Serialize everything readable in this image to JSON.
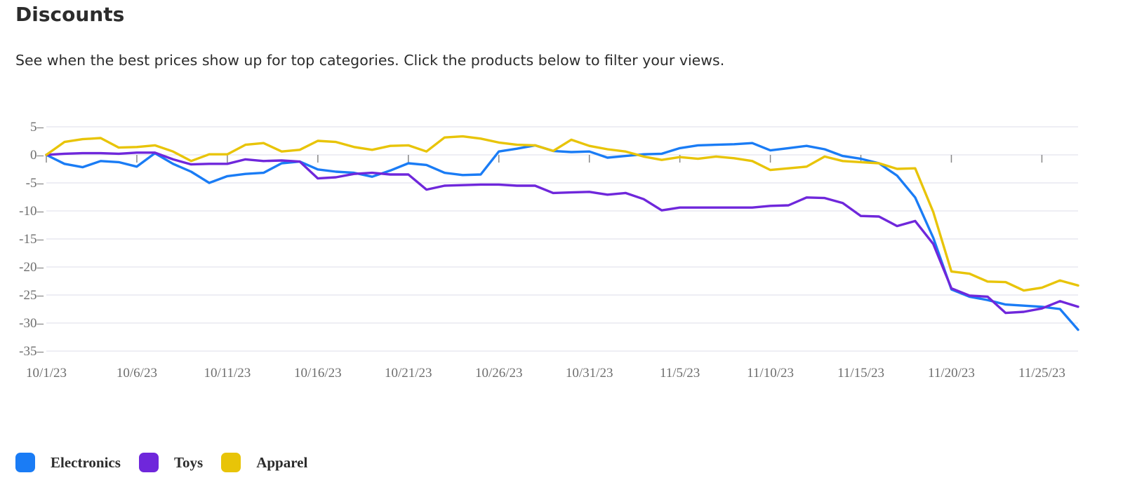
{
  "header": {
    "title": "Discounts",
    "subtitle": "See when the best prices show up for top categories. Click the products below to filter your views."
  },
  "chart_data": {
    "type": "line",
    "title": "",
    "xlabel": "",
    "ylabel": "",
    "ylim": [
      -35,
      5
    ],
    "yticks": [
      5,
      0,
      -5,
      -10,
      -15,
      -20,
      -25,
      -30,
      -35
    ],
    "grid": true,
    "legend_position": "bottom-left",
    "x": [
      "10/1/23",
      "10/2/23",
      "10/3/23",
      "10/4/23",
      "10/5/23",
      "10/6/23",
      "10/7/23",
      "10/8/23",
      "10/9/23",
      "10/10/23",
      "10/11/23",
      "10/12/23",
      "10/13/23",
      "10/14/23",
      "10/15/23",
      "10/16/23",
      "10/17/23",
      "10/18/23",
      "10/19/23",
      "10/20/23",
      "10/21/23",
      "10/22/23",
      "10/23/23",
      "10/24/23",
      "10/25/23",
      "10/26/23",
      "10/27/23",
      "10/28/23",
      "10/29/23",
      "10/30/23",
      "10/31/23",
      "11/1/23",
      "11/2/23",
      "11/3/23",
      "11/4/23",
      "11/5/23",
      "11/6/23",
      "11/7/23",
      "11/8/23",
      "11/9/23",
      "11/10/23",
      "11/11/23",
      "11/12/23",
      "11/13/23",
      "11/14/23",
      "11/15/23",
      "11/16/23",
      "11/17/23",
      "11/18/23",
      "11/19/23",
      "11/20/23",
      "11/21/23",
      "11/22/23",
      "11/23/23",
      "11/24/23",
      "11/25/23",
      "11/26/23",
      "11/27/23"
    ],
    "x_tick_labels": [
      "10/1/23",
      "10/6/23",
      "10/11/23",
      "10/16/23",
      "10/21/23",
      "10/26/23",
      "10/31/23",
      "11/5/23",
      "11/10/23",
      "11/15/23",
      "11/20/23",
      "11/25/23"
    ],
    "series": [
      {
        "name": "Electronics",
        "color": "#1a7cf5",
        "values": [
          0,
          -1.6,
          -2.2,
          -1.1,
          -1.3,
          -2.1,
          0.3,
          -1.6,
          -3.0,
          -5.0,
          -3.8,
          -3.4,
          -3.2,
          -1.5,
          -1.2,
          -2.6,
          -3.0,
          -3.2,
          -3.9,
          -2.8,
          -1.5,
          -1.8,
          -3.2,
          -3.6,
          -3.5,
          0.6,
          1.1,
          1.7,
          0.7,
          0.5,
          0.6,
          -0.5,
          -0.2,
          0.1,
          0.2,
          1.2,
          1.7,
          1.8,
          1.9,
          2.1,
          0.8,
          1.2,
          1.6,
          1.0,
          -0.2,
          -0.7,
          -1.5,
          -3.7,
          -7.6,
          -14.8,
          -24.0,
          -25.3,
          -25.9,
          -26.7,
          -26.9,
          -27.1,
          -27.5,
          -31.2
        ]
      },
      {
        "name": "Toys",
        "color": "#6f27db",
        "values": [
          0,
          0.2,
          0.3,
          0.3,
          0.2,
          0.4,
          0.4,
          -0.8,
          -1.7,
          -1.6,
          -1.6,
          -0.8,
          -1.1,
          -1.0,
          -1.2,
          -4.2,
          -4.0,
          -3.4,
          -3.2,
          -3.5,
          -3.5,
          -6.2,
          -5.5,
          -5.4,
          -5.3,
          -5.3,
          -5.5,
          -5.5,
          -6.8,
          -6.7,
          -6.6,
          -7.1,
          -6.8,
          -7.9,
          -9.9,
          -9.4,
          -9.4,
          -9.4,
          -9.4,
          -9.4,
          -9.1,
          -9.0,
          -7.6,
          -7.7,
          -8.6,
          -10.9,
          -11.0,
          -12.7,
          -11.8,
          -15.9,
          -23.8,
          -25.1,
          -25.3,
          -28.2,
          -28.0,
          -27.4,
          -26.1,
          -27.1
        ]
      },
      {
        "name": "Apparel",
        "color": "#e8c408",
        "values": [
          0,
          2.3,
          2.8,
          3.0,
          1.3,
          1.4,
          1.7,
          0.6,
          -1.1,
          0.1,
          0.1,
          1.8,
          2.1,
          0.6,
          0.9,
          2.5,
          2.3,
          1.4,
          0.9,
          1.6,
          1.7,
          0.6,
          3.1,
          3.3,
          2.9,
          2.2,
          1.8,
          1.7,
          0.7,
          2.7,
          1.6,
          1.0,
          0.6,
          -0.3,
          -0.9,
          -0.4,
          -0.7,
          -0.3,
          -0.6,
          -1.1,
          -2.7,
          -2.4,
          -2.1,
          -0.3,
          -1.1,
          -1.3,
          -1.5,
          -2.5,
          -2.4,
          -10.2,
          -20.8,
          -21.2,
          -22.6,
          -22.7,
          -24.2,
          -23.7,
          -22.4,
          -23.3
        ]
      }
    ]
  }
}
